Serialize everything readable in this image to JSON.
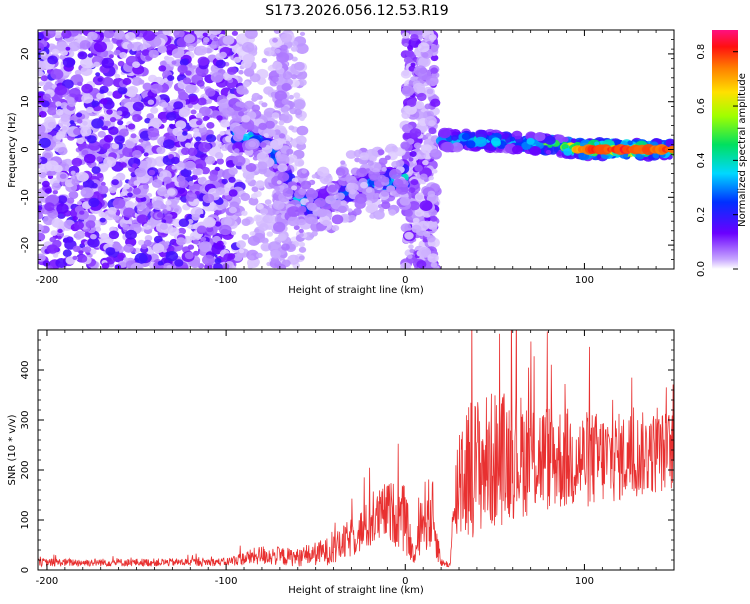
{
  "title": "S173.2026.056.12.53.R19",
  "chart_data": [
    {
      "type": "heatmap",
      "title": "S173.2026.056.12.53.R19",
      "xlabel": "Height of straight line (km)",
      "ylabel": "Frequency (Hz)",
      "xlim": [
        -205,
        150
      ],
      "ylim": [
        -25,
        25
      ],
      "xticks": [
        -200,
        -100,
        0,
        100
      ],
      "yticks": [
        -20,
        -10,
        0,
        10,
        20
      ],
      "colorbar": {
        "label": "Normalized spectral amplitude",
        "range": [
          0.0,
          0.88
        ],
        "ticks": [
          "0.0",
          "0.2",
          "0.4",
          "0.6",
          "0.8"
        ],
        "colormap": "rainbow"
      },
      "ridge": {
        "x": [
          -95,
          -80,
          -70,
          -60,
          -50,
          -40,
          -30,
          -20,
          -10,
          -2,
          20,
          40,
          60,
          80,
          100,
          120,
          150
        ],
        "frequency": [
          3,
          2,
          -3,
          -11,
          -12,
          -10,
          -8,
          -7,
          -7,
          -6,
          2,
          2,
          1.5,
          1,
          0,
          0,
          0
        ],
        "amplitude": [
          0.45,
          0.4,
          0.3,
          0.4,
          0.4,
          0.35,
          0.35,
          0.4,
          0.45,
          0.5,
          0.4,
          0.45,
          0.45,
          0.55,
          0.8,
          0.85,
          0.8
        ]
      }
    },
    {
      "type": "line",
      "xlabel": "Height of straight line (km)",
      "ylabel": "SNR (10 * v/v)",
      "xlim": [
        -205,
        150
      ],
      "ylim": [
        0,
        480
      ],
      "xticks": [
        -200,
        -100,
        0,
        100
      ],
      "yticks": [
        0,
        100,
        200,
        300,
        400
      ],
      "color": "#e83030",
      "series": [
        {
          "name": "SNR",
          "envelope_x": [
            -205,
            -150,
            -100,
            -80,
            -60,
            -40,
            -20,
            -10,
            0,
            5,
            10,
            15,
            20,
            25,
            30,
            40,
            50,
            60,
            80,
            100,
            120,
            150
          ],
          "envelope_mean": [
            15,
            15,
            16,
            30,
            25,
            40,
            90,
            120,
            100,
            20,
            110,
            110,
            15,
            10,
            200,
            210,
            220,
            230,
            225,
            220,
            225,
            240
          ],
          "envelope_spread": [
            8,
            8,
            8,
            20,
            18,
            30,
            50,
            60,
            70,
            10,
            70,
            80,
            8,
            6,
            150,
            140,
            140,
            130,
            110,
            100,
            90,
            80
          ]
        }
      ]
    }
  ]
}
